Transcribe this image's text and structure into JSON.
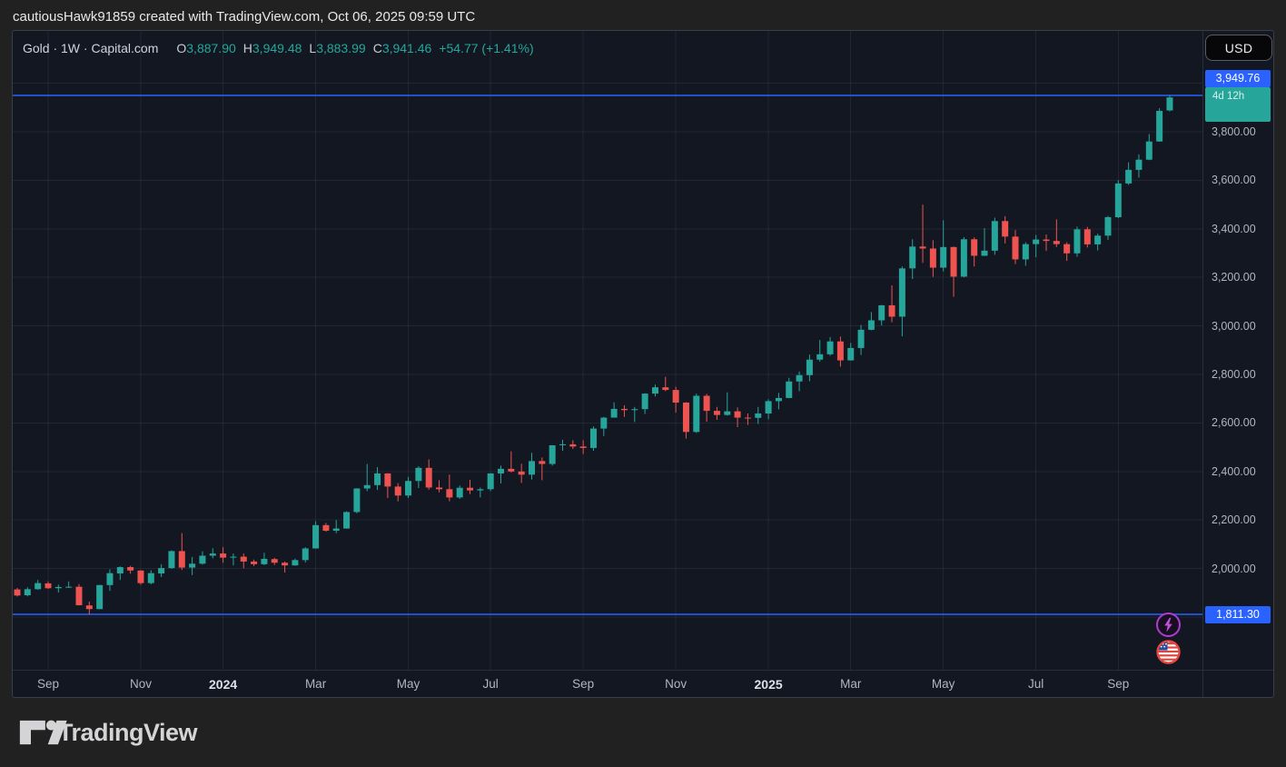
{
  "top_bar": {
    "attribution": "cautiousHawk91859 created with TradingView.com, Oct 06, 2025 09:59 UTC"
  },
  "legend": {
    "symbol_title": "Gold · 1W · Capital.com",
    "ohlc": [
      {
        "k": "O",
        "v": "3,887.90"
      },
      {
        "k": "H",
        "v": "3,949.48"
      },
      {
        "k": "L",
        "v": "3,883.99"
      },
      {
        "k": "C",
        "v": "3,941.46"
      }
    ],
    "change": "+54.77 (+1.41%)"
  },
  "price_axis": {
    "currency_button": "USD",
    "high_line_label": "3,949.76",
    "last_price_label": "3,941.46",
    "countdown": "4d 12h",
    "low_line_label": "1,811.30",
    "ticks": [
      {
        "price": 3800,
        "label": "3,800.00"
      },
      {
        "price": 3600,
        "label": "3,600.00"
      },
      {
        "price": 3400,
        "label": "3,400.00"
      },
      {
        "price": 3200,
        "label": "3,200.00"
      },
      {
        "price": 3000,
        "label": "3,000.00"
      },
      {
        "price": 2800,
        "label": "2,800.00"
      },
      {
        "price": 2600,
        "label": "2,600.00"
      },
      {
        "price": 2400,
        "label": "2,400.00"
      },
      {
        "price": 2200,
        "label": "2,200.00"
      },
      {
        "price": 2000,
        "label": "2,000.00"
      }
    ]
  },
  "footer": {
    "brand": "TradingView"
  },
  "colors": {
    "up": "#26a69a",
    "down": "#ef5350",
    "line_blue": "#2962ff",
    "grid": "rgba(240,243,250,0.07)",
    "chart_bg": "#131722",
    "page_bg": "#212121",
    "axis_text": "#b2b5be"
  },
  "chart_data": {
    "type": "candlestick",
    "title": "Gold · 1W · Capital.com",
    "symbol": "Gold",
    "interval": "1W",
    "exchange": "Capital.com",
    "current_bar": {
      "open": 3887.9,
      "high": 3949.48,
      "low": 3883.99,
      "close": 3941.46,
      "change": "+54.77",
      "change_pct": "+1.41%",
      "time_remaining": "4d 12h"
    },
    "price_lines": [
      {
        "price": 3949.76,
        "label": "3,949.76",
        "color": "#2962ff"
      },
      {
        "price": 1811.3,
        "label": "1,811.30",
        "color": "#2962ff"
      }
    ],
    "gridline_prices": [
      4000,
      3800,
      3600,
      3400,
      3200,
      3000,
      2800,
      2600,
      2400,
      2200,
      2000,
      1800
    ],
    "y_axis_range": [
      1780,
      4090
    ],
    "time_labels": [
      {
        "text": "Sep",
        "i": 3
      },
      {
        "text": "Nov",
        "i": 12
      },
      {
        "text": "2024",
        "i": 20,
        "bold": true
      },
      {
        "text": "Mar",
        "i": 29
      },
      {
        "text": "May",
        "i": 38
      },
      {
        "text": "Jul",
        "i": 46
      },
      {
        "text": "Sep",
        "i": 55
      },
      {
        "text": "Nov",
        "i": 64
      },
      {
        "text": "2025",
        "i": 73,
        "bold": true
      },
      {
        "text": "Mar",
        "i": 81
      },
      {
        "text": "May",
        "i": 90
      },
      {
        "text": "Jul",
        "i": 99
      },
      {
        "text": "Sep",
        "i": 107
      }
    ],
    "candles": [
      [
        1914,
        1920,
        1885,
        1889
      ],
      [
        1890,
        1923,
        1885,
        1915
      ],
      [
        1915,
        1953,
        1913,
        1940
      ],
      [
        1939,
        1947,
        1916,
        1919
      ],
      [
        1919,
        1934,
        1901,
        1924
      ],
      [
        1924,
        1947,
        1920,
        1925
      ],
      [
        1925,
        1936,
        1848,
        1849
      ],
      [
        1848,
        1864,
        1810,
        1833
      ],
      [
        1833,
        1933,
        1832,
        1932
      ],
      [
        1932,
        1997,
        1908,
        1981
      ],
      [
        1980,
        2009,
        1953,
        2006
      ],
      [
        2006,
        2011,
        1979,
        1992
      ],
      [
        1992,
        1993,
        1933,
        1940
      ],
      [
        1940,
        1993,
        1935,
        1981
      ],
      [
        1980,
        2018,
        1965,
        2002
      ],
      [
        2002,
        2075,
        1999,
        2072
      ],
      [
        2072,
        2146,
        1994,
        2004
      ],
      [
        2004,
        2048,
        1973,
        2020
      ],
      [
        2020,
        2071,
        2016,
        2053
      ],
      [
        2053,
        2084,
        2042,
        2062
      ],
      [
        2062,
        2088,
        2024,
        2045
      ],
      [
        2045,
        2062,
        2013,
        2049
      ],
      [
        2049,
        2062,
        2001,
        2029
      ],
      [
        2029,
        2037,
        2010,
        2018
      ],
      [
        2018,
        2065,
        2014,
        2040
      ],
      [
        2039,
        2044,
        2015,
        2024
      ],
      [
        2024,
        2029,
        1984,
        2013
      ],
      [
        2013,
        2041,
        2012,
        2035
      ],
      [
        2035,
        2088,
        2025,
        2083
      ],
      [
        2083,
        2195,
        2082,
        2179
      ],
      [
        2179,
        2188,
        2152,
        2156
      ],
      [
        2156,
        2200,
        2146,
        2165
      ],
      [
        2165,
        2236,
        2164,
        2233
      ],
      [
        2233,
        2331,
        2228,
        2330
      ],
      [
        2330,
        2431,
        2319,
        2344
      ],
      [
        2344,
        2418,
        2324,
        2392
      ],
      [
        2392,
        2393,
        2291,
        2338
      ],
      [
        2338,
        2352,
        2277,
        2301
      ],
      [
        2301,
        2378,
        2291,
        2361
      ],
      [
        2361,
        2422,
        2332,
        2415
      ],
      [
        2415,
        2450,
        2325,
        2334
      ],
      [
        2334,
        2364,
        2314,
        2327
      ],
      [
        2327,
        2387,
        2277,
        2293
      ],
      [
        2293,
        2342,
        2287,
        2333
      ],
      [
        2333,
        2366,
        2307,
        2322
      ],
      [
        2322,
        2334,
        2293,
        2327
      ],
      [
        2327,
        2393,
        2319,
        2392
      ],
      [
        2392,
        2424,
        2351,
        2411
      ],
      [
        2411,
        2483,
        2396,
        2400
      ],
      [
        2400,
        2432,
        2353,
        2387
      ],
      [
        2387,
        2477,
        2367,
        2443
      ],
      [
        2443,
        2458,
        2364,
        2431
      ],
      [
        2431,
        2509,
        2424,
        2508
      ],
      [
        2508,
        2531,
        2485,
        2512
      ],
      [
        2512,
        2529,
        2493,
        2503
      ],
      [
        2503,
        2529,
        2472,
        2497
      ],
      [
        2497,
        2586,
        2485,
        2577
      ],
      [
        2577,
        2625,
        2546,
        2622
      ],
      [
        2622,
        2685,
        2622,
        2658
      ],
      [
        2658,
        2673,
        2625,
        2653
      ],
      [
        2653,
        2666,
        2604,
        2657
      ],
      [
        2657,
        2722,
        2637,
        2721
      ],
      [
        2721,
        2758,
        2709,
        2747
      ],
      [
        2747,
        2790,
        2731,
        2736
      ],
      [
        2736,
        2749,
        2643,
        2684
      ],
      [
        2684,
        2686,
        2536,
        2563
      ],
      [
        2563,
        2721,
        2559,
        2712
      ],
      [
        2712,
        2720,
        2605,
        2650
      ],
      [
        2650,
        2666,
        2613,
        2633
      ],
      [
        2633,
        2726,
        2630,
        2648
      ],
      [
        2648,
        2664,
        2583,
        2622
      ],
      [
        2622,
        2639,
        2592,
        2621
      ],
      [
        2621,
        2666,
        2596,
        2639
      ],
      [
        2639,
        2698,
        2615,
        2690
      ],
      [
        2690,
        2724,
        2656,
        2703
      ],
      [
        2703,
        2786,
        2702,
        2771
      ],
      [
        2771,
        2812,
        2731,
        2797
      ],
      [
        2797,
        2882,
        2772,
        2861
      ],
      [
        2861,
        2942,
        2853,
        2883
      ],
      [
        2883,
        2954,
        2877,
        2936
      ],
      [
        2936,
        2956,
        2832,
        2858
      ],
      [
        2858,
        2930,
        2857,
        2909
      ],
      [
        2909,
        3004,
        2880,
        2984
      ],
      [
        2984,
        3057,
        2982,
        3023
      ],
      [
        3023,
        3086,
        3002,
        3085
      ],
      [
        3085,
        3167,
        3015,
        3038
      ],
      [
        3038,
        3245,
        2957,
        3237
      ],
      [
        3237,
        3357,
        3193,
        3327
      ],
      [
        3327,
        3500,
        3260,
        3319
      ],
      [
        3319,
        3353,
        3202,
        3240
      ],
      [
        3240,
        3435,
        3224,
        3325
      ],
      [
        3325,
        3327,
        3120,
        3203
      ],
      [
        3203,
        3366,
        3200,
        3357
      ],
      [
        3357,
        3365,
        3245,
        3289
      ],
      [
        3289,
        3403,
        3288,
        3310
      ],
      [
        3310,
        3446,
        3293,
        3432
      ],
      [
        3432,
        3452,
        3340,
        3368
      ],
      [
        3368,
        3395,
        3255,
        3274
      ],
      [
        3274,
        3345,
        3248,
        3337
      ],
      [
        3337,
        3375,
        3283,
        3356
      ],
      [
        3356,
        3377,
        3309,
        3350
      ],
      [
        3350,
        3439,
        3325,
        3337
      ],
      [
        3337,
        3345,
        3268,
        3299
      ],
      [
        3299,
        3409,
        3285,
        3398
      ],
      [
        3398,
        3408,
        3323,
        3336
      ],
      [
        3336,
        3380,
        3311,
        3372
      ],
      [
        3372,
        3453,
        3354,
        3448
      ],
      [
        3448,
        3600,
        3444,
        3587
      ],
      [
        3587,
        3674,
        3581,
        3643
      ],
      [
        3643,
        3707,
        3611,
        3685
      ],
      [
        3685,
        3791,
        3683,
        3760
      ],
      [
        3760,
        3897,
        3759,
        3886
      ],
      [
        3887.9,
        3949.48,
        3883.99,
        3941.46
      ]
    ]
  }
}
